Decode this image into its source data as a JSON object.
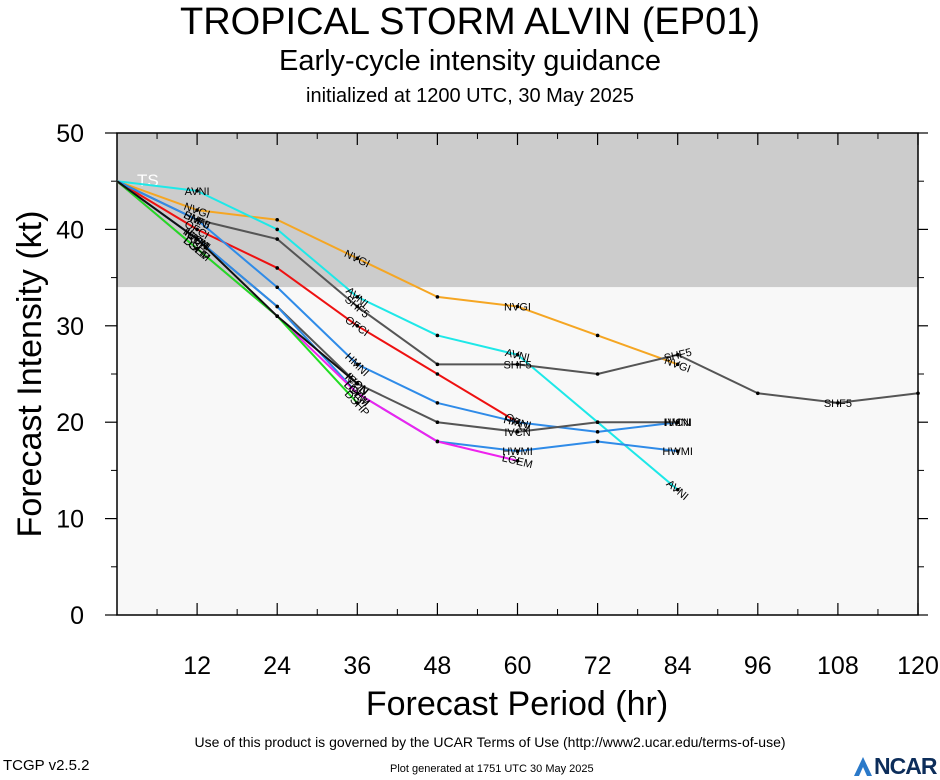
{
  "header": {
    "title": "TROPICAL STORM ALVIN (EP01)",
    "subtitle": "Early-cycle intensity guidance",
    "initialized": "initialized at 1200 UTC, 30 May 2025"
  },
  "footer": {
    "terms": "Use of this product is governed by the UCAR Terms of Use (http://www2.ucar.edu/terms-of-use)",
    "version": "TCGP v2.5.2",
    "generated": "Plot generated at 1751 UTC   30 May 2025",
    "logo_text": "NCAR"
  },
  "chart_data": {
    "type": "line",
    "title": "TROPICAL STORM ALVIN (EP01)",
    "xlabel": "Forecast Period (hr)",
    "ylabel": "Forecast Intensity (kt)",
    "xlim": [
      0,
      120
    ],
    "ylim": [
      0,
      50
    ],
    "xticks": [
      12,
      24,
      36,
      48,
      60,
      72,
      84,
      96,
      108,
      120
    ],
    "yticks": [
      0,
      10,
      20,
      30,
      40,
      50
    ],
    "grid": false,
    "bands": [
      {
        "label": "TS",
        "ymin": 34,
        "ymax": 50,
        "color": "#cccccc"
      },
      {
        "label": "",
        "ymin": 0,
        "ymax": 34,
        "color": "#f8f8f8"
      }
    ],
    "series": [
      {
        "name": "NVGI",
        "color": "#f5a623",
        "x": [
          0,
          12,
          24,
          36,
          48,
          60,
          72,
          84
        ],
        "y": [
          45,
          42,
          41,
          37,
          33,
          32,
          29,
          26
        ]
      },
      {
        "name": "AVNI",
        "color": "#1ee8e8",
        "x": [
          0,
          12,
          24,
          36,
          48,
          60,
          72,
          84
        ],
        "y": [
          45,
          44,
          40,
          33,
          29,
          27,
          20,
          13
        ]
      },
      {
        "name": "SHF5",
        "color": "#555555",
        "x": [
          0,
          12,
          24,
          36,
          48,
          60,
          72,
          84,
          96,
          108,
          120
        ],
        "y": [
          45,
          41,
          39,
          32,
          26,
          26,
          25,
          27,
          23,
          22,
          23
        ]
      },
      {
        "name": "OFCI",
        "color": "#ee1111",
        "x": [
          0,
          12,
          24,
          36,
          48,
          60
        ],
        "y": [
          45,
          40,
          36,
          30,
          25,
          20
        ]
      },
      {
        "name": "HMNI",
        "color": "#2f8be8",
        "x": [
          0,
          12,
          24,
          36,
          48,
          60,
          72,
          84
        ],
        "y": [
          45,
          41,
          34,
          26,
          22,
          20,
          19,
          20
        ]
      },
      {
        "name": "IVCN",
        "color": "#555555",
        "x": [
          0,
          12,
          24,
          36,
          48,
          60,
          72,
          84
        ],
        "y": [
          45,
          39,
          32,
          24,
          20,
          19,
          20,
          20
        ]
      },
      {
        "name": "HWMI",
        "color": "#2f8be8",
        "x": [
          0,
          12,
          24,
          36,
          48,
          60,
          72,
          84
        ],
        "y": [
          45,
          39,
          32,
          23,
          18,
          17,
          18,
          17
        ]
      },
      {
        "name": "LGEM",
        "color": "#ee22ee",
        "x": [
          0,
          12,
          24,
          36,
          48,
          60
        ],
        "y": [
          45,
          38,
          31,
          23,
          18,
          16
        ]
      },
      {
        "name": "DSHP",
        "color": "#22dd22",
        "x": [
          0,
          12,
          24,
          36
        ],
        "y": [
          45,
          38,
          31,
          22
        ]
      },
      {
        "name": "ICON",
        "color": "#111111",
        "x": [
          0,
          12,
          24,
          36
        ],
        "y": [
          45,
          39,
          31,
          24
        ]
      }
    ]
  }
}
